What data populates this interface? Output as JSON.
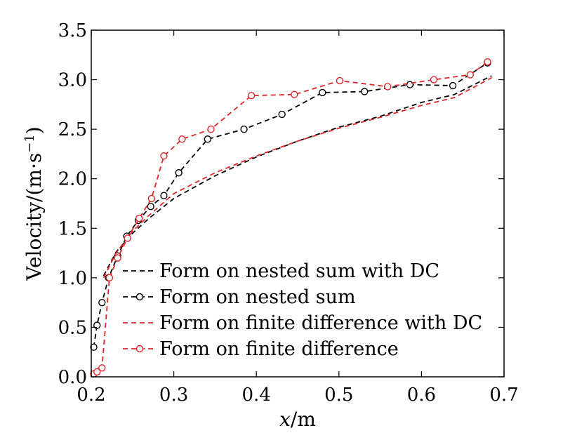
{
  "chart_data": {
    "type": "line",
    "title": "",
    "xlabel": {
      "var": "x",
      "unit": "/m"
    },
    "ylabel": {
      "base": "Velocity/(m·s",
      "sup": "−1",
      "close": ")"
    },
    "xlim": [
      0.2,
      0.7
    ],
    "ylim": [
      0.0,
      3.5
    ],
    "xticks": [
      "0.2",
      "0.3",
      "0.4",
      "0.5",
      "0.6",
      "0.7"
    ],
    "yticks": [
      "0.0",
      "0.5",
      "1.0",
      "1.5",
      "2.0",
      "2.5",
      "3.0",
      "3.5"
    ],
    "grid": false,
    "legend_position": "bottom-right",
    "series": [
      {
        "name": "Form on nested sum with DC",
        "color": "#000000",
        "marker": "none",
        "x": [
          0.215,
          0.23,
          0.25,
          0.27,
          0.3,
          0.35,
          0.4,
          0.45,
          0.5,
          0.55,
          0.6,
          0.64,
          0.685
        ],
        "y": [
          1.02,
          1.26,
          1.45,
          1.6,
          1.8,
          2.03,
          2.22,
          2.38,
          2.52,
          2.63,
          2.77,
          2.85,
          3.04
        ]
      },
      {
        "name": "Form on nested sum",
        "color": "#000000",
        "marker": "circle",
        "x": [
          0.203,
          0.207,
          0.213,
          0.221,
          0.232,
          0.243,
          0.257,
          0.272,
          0.288,
          0.306,
          0.341,
          0.385,
          0.431,
          0.48,
          0.531,
          0.586,
          0.638,
          0.68
        ],
        "y": [
          0.3,
          0.52,
          0.75,
          1.0,
          1.22,
          1.42,
          1.58,
          1.72,
          1.83,
          2.06,
          2.4,
          2.5,
          2.65,
          2.87,
          2.88,
          2.95,
          2.94,
          3.17
        ]
      },
      {
        "name": "Form on finite difference with DC",
        "color": "#e1262b",
        "marker": "none",
        "x": [
          0.215,
          0.23,
          0.25,
          0.27,
          0.3,
          0.35,
          0.4,
          0.45,
          0.5,
          0.55,
          0.6,
          0.64,
          0.685
        ],
        "y": [
          1.0,
          1.25,
          1.47,
          1.63,
          1.85,
          2.06,
          2.23,
          2.38,
          2.51,
          2.62,
          2.74,
          2.82,
          3.02
        ]
      },
      {
        "name": "Form on finite difference",
        "color": "#e1262b",
        "marker": "circle",
        "x": [
          0.203,
          0.207,
          0.213,
          0.222,
          0.232,
          0.244,
          0.258,
          0.273,
          0.288,
          0.31,
          0.345,
          0.394,
          0.446,
          0.501,
          0.559,
          0.615,
          0.659,
          0.68
        ],
        "y": [
          0.03,
          0.05,
          0.09,
          1.0,
          1.2,
          1.4,
          1.6,
          1.8,
          2.23,
          2.4,
          2.5,
          2.84,
          2.85,
          2.99,
          2.93,
          3.0,
          3.05,
          3.18
        ]
      }
    ]
  }
}
